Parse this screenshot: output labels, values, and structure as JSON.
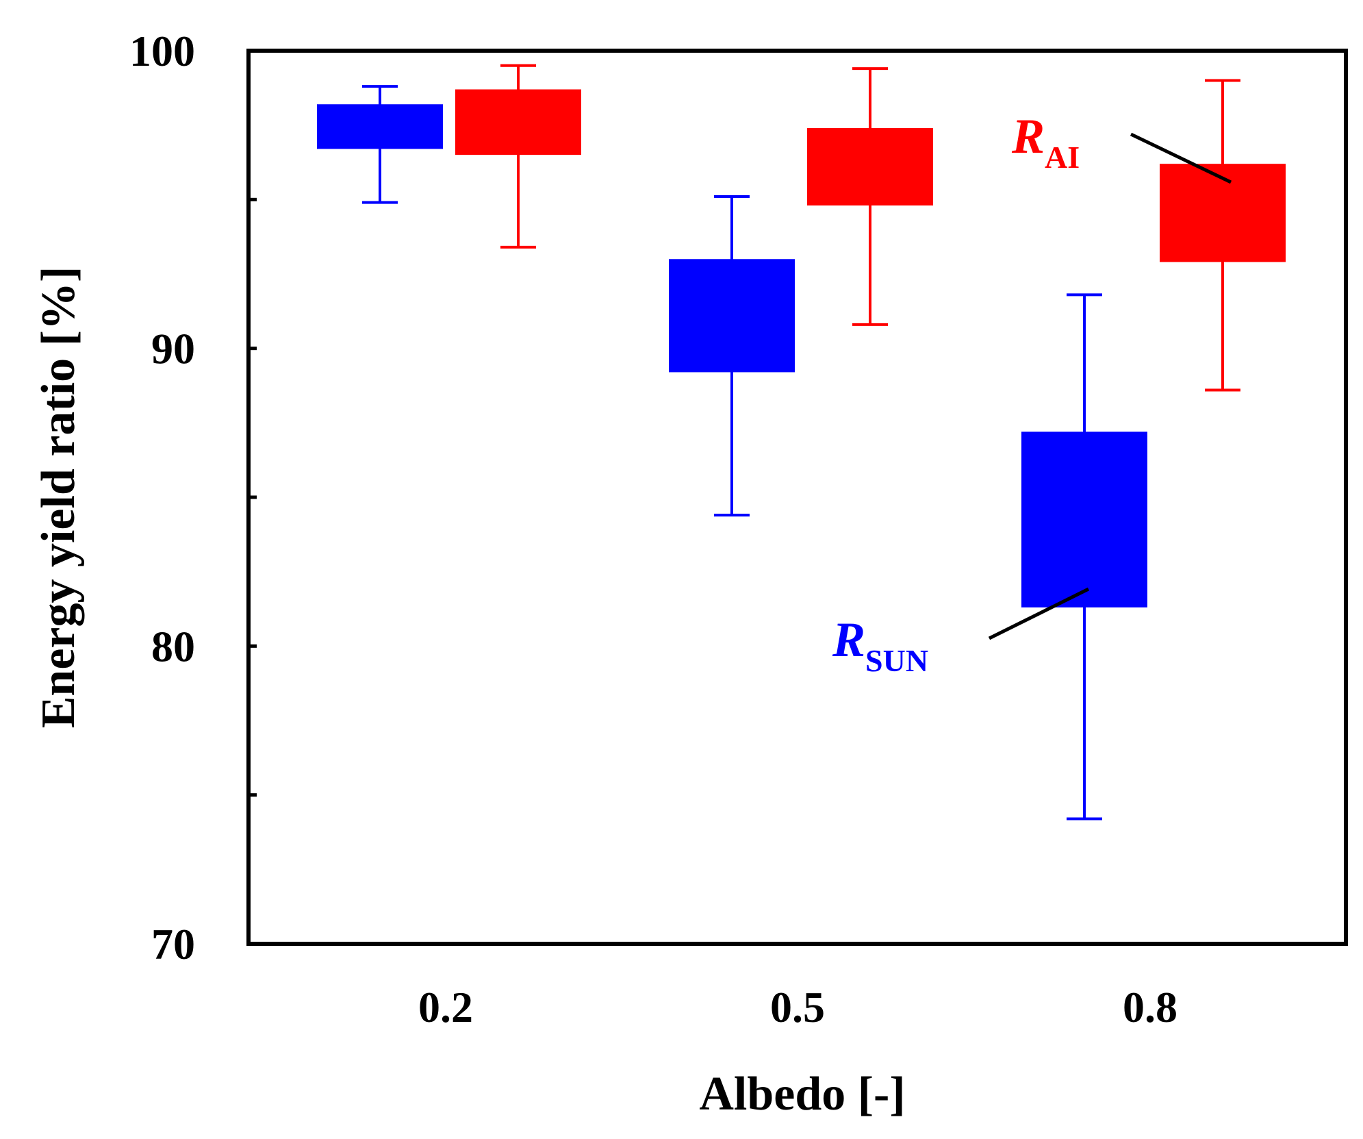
{
  "chart_data": {
    "type": "box",
    "title": "",
    "xlabel": "Albedo [-]",
    "ylabel": "Energy yield ratio [%]",
    "ylim": [
      70,
      100
    ],
    "y_ticks": [
      70,
      75,
      80,
      85,
      90,
      95,
      100
    ],
    "y_tick_labels": [
      "70",
      "90",
      "80",
      "100"
    ],
    "y_labeled_values": [
      70,
      90,
      80,
      100
    ],
    "categories": [
      "0.2",
      "0.5",
      "0.8"
    ],
    "series": [
      {
        "name": "R_SUN",
        "color": "#0000ff",
        "boxes": [
          {
            "whisker_low": 94.9,
            "q1": 96.7,
            "q3": 98.2,
            "whisker_high": 98.8
          },
          {
            "whisker_low": 84.4,
            "q1": 89.2,
            "q3": 93.0,
            "whisker_high": 95.1
          },
          {
            "whisker_low": 74.2,
            "q1": 81.3,
            "q3": 87.2,
            "whisker_high": 91.8
          }
        ]
      },
      {
        "name": "R_AI",
        "color": "#ff0000",
        "boxes": [
          {
            "whisker_low": 93.4,
            "q1": 96.5,
            "q3": 98.7,
            "whisker_high": 99.5
          },
          {
            "whisker_low": 90.8,
            "q1": 94.8,
            "q3": 97.4,
            "whisker_high": 99.4
          },
          {
            "whisker_low": 88.6,
            "q1": 92.9,
            "q3": 96.2,
            "whisker_high": 99.0
          }
        ]
      }
    ],
    "annotations": [
      {
        "main": "R",
        "sub": "AI",
        "color": "#ff0000",
        "points_to": "R_AI at 0.8"
      },
      {
        "main": "R",
        "sub": "SUN",
        "color": "#0000ff",
        "points_to": "R_SUN at 0.8"
      }
    ]
  }
}
